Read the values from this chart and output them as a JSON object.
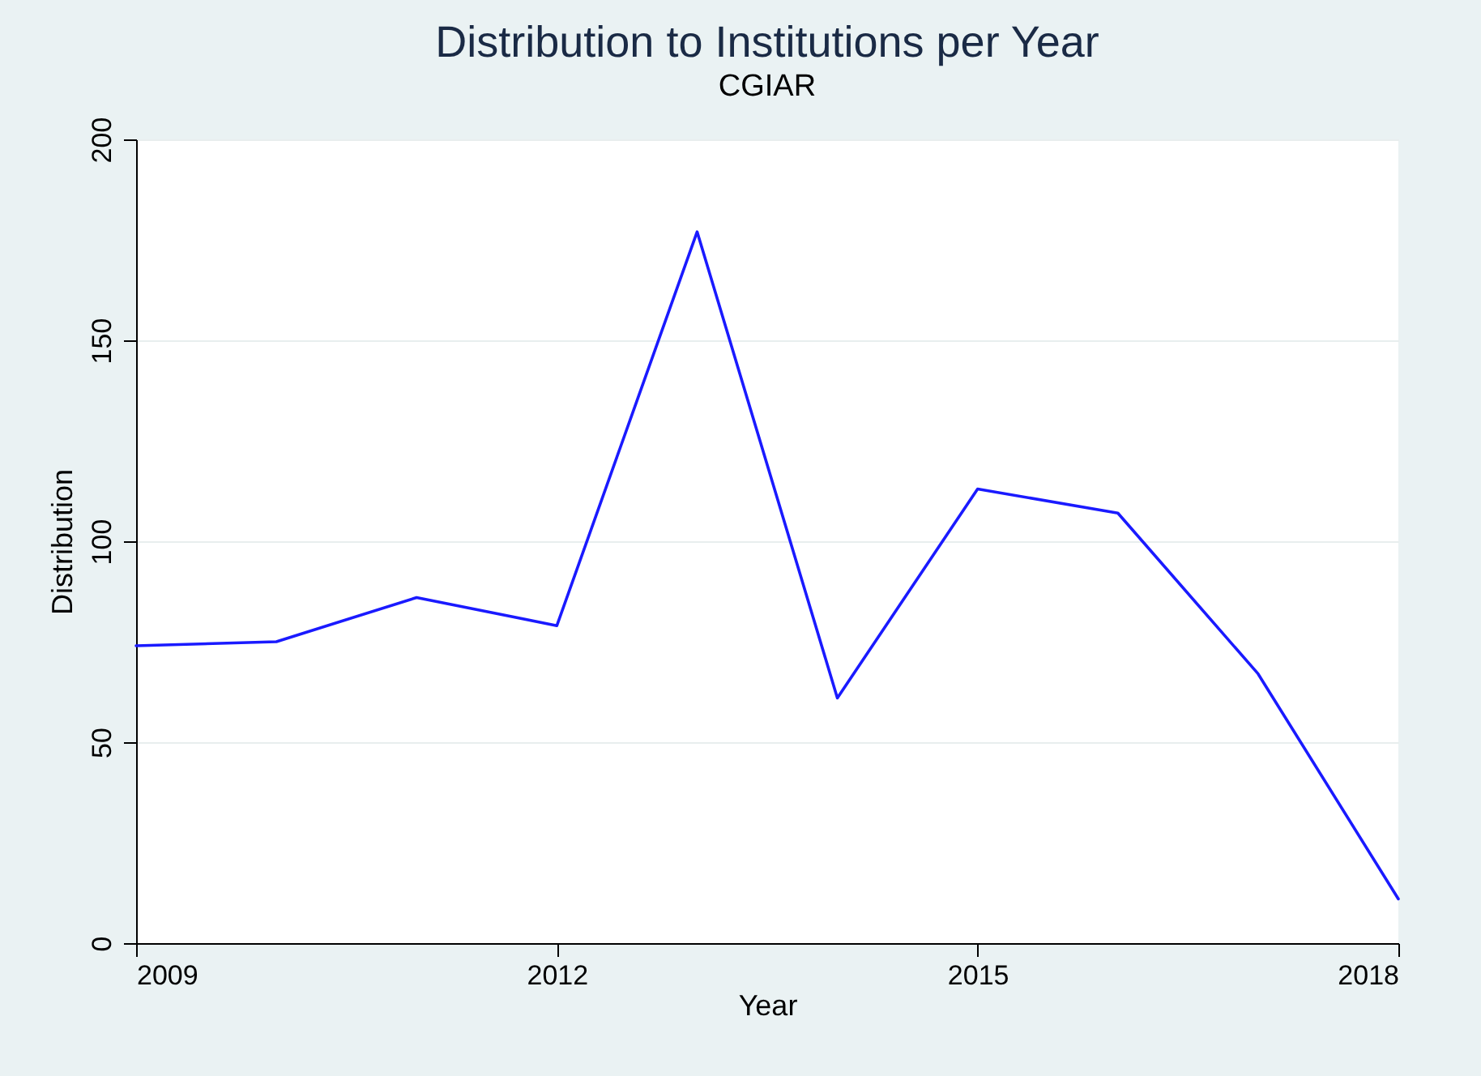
{
  "chart_data": {
    "type": "line",
    "title": "Distribution to Institutions per Year",
    "subtitle": "CGIAR",
    "xlabel": "Year",
    "ylabel": "Distribution",
    "x": [
      2009,
      2010,
      2011,
      2012,
      2013,
      2014,
      2015,
      2016,
      2017,
      2018
    ],
    "series": [
      {
        "color": "#1a1aff",
        "values": [
          74,
          75,
          86,
          79,
          177,
          61,
          113,
          107,
          67,
          11
        ]
      }
    ],
    "xlim": [
      2009,
      2018
    ],
    "xticks": [
      2009,
      2012,
      2015,
      2018
    ],
    "ylim": [
      0,
      200
    ],
    "yticks": [
      0,
      50,
      100,
      150,
      200
    ],
    "grid": "y",
    "marker": "none",
    "line_style": "solid"
  }
}
